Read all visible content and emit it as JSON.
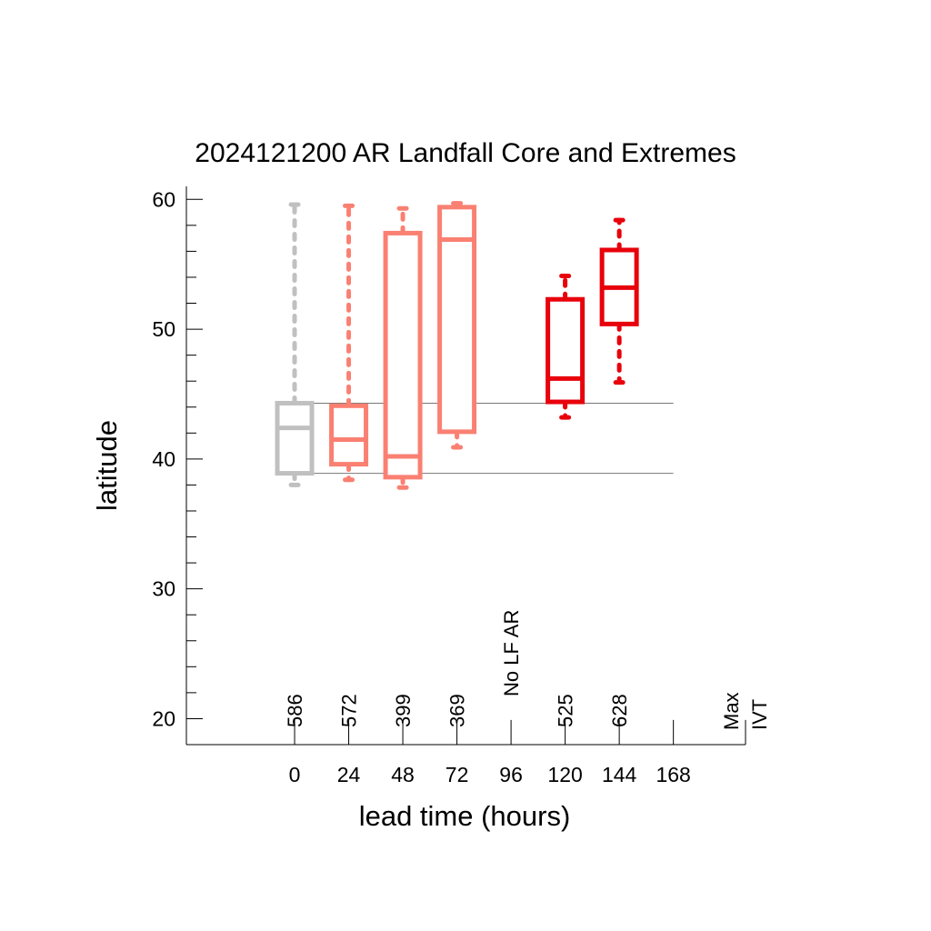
{
  "chart_data": {
    "type": "box",
    "title": "2024121200 AR Landfall Core and Extremes",
    "xlabel": "lead time (hours)",
    "ylabel": "latitude",
    "xlim": [
      -48,
      200
    ],
    "ylim": [
      18,
      61
    ],
    "x_ticks": [
      0,
      24,
      48,
      72,
      96,
      120,
      144,
      168
    ],
    "y_ticks": [
      20,
      30,
      40,
      50,
      60
    ],
    "reference_lines": [
      44.3,
      38.9
    ],
    "no_data_label": "No LF AR",
    "no_data_at": 96,
    "side_label": [
      "Max",
      "IVT"
    ],
    "colors": {
      "analysis": "#c0c0c0",
      "mid": "#fa8072",
      "late": "#e8000b"
    },
    "boxes": [
      {
        "x": 0,
        "count": "586",
        "whisker_low": 38.0,
        "q1": 38.9,
        "median": 42.4,
        "q3": 44.3,
        "whisker_high": 59.6,
        "color": "#c0c0c0"
      },
      {
        "x": 24,
        "count": "572",
        "whisker_low": 38.4,
        "q1": 39.6,
        "median": 41.5,
        "q3": 44.1,
        "whisker_high": 59.5,
        "color": "#fa8072"
      },
      {
        "x": 48,
        "count": "399",
        "whisker_low": 37.8,
        "q1": 38.6,
        "median": 40.2,
        "q3": 57.4,
        "whisker_high": 59.3,
        "color": "#fa8072"
      },
      {
        "x": 72,
        "count": "369",
        "whisker_low": 40.9,
        "q1": 42.1,
        "median": 56.9,
        "q3": 59.4,
        "whisker_high": 59.7,
        "color": "#fa8072"
      },
      {
        "x": 120,
        "count": "525",
        "whisker_low": 43.2,
        "q1": 44.4,
        "median": 46.2,
        "q3": 52.3,
        "whisker_high": 54.1,
        "color": "#e8000b"
      },
      {
        "x": 144,
        "count": "628",
        "whisker_low": 45.9,
        "q1": 50.4,
        "median": 53.2,
        "q3": 56.1,
        "whisker_high": 58.4,
        "color": "#e8000b"
      }
    ]
  }
}
